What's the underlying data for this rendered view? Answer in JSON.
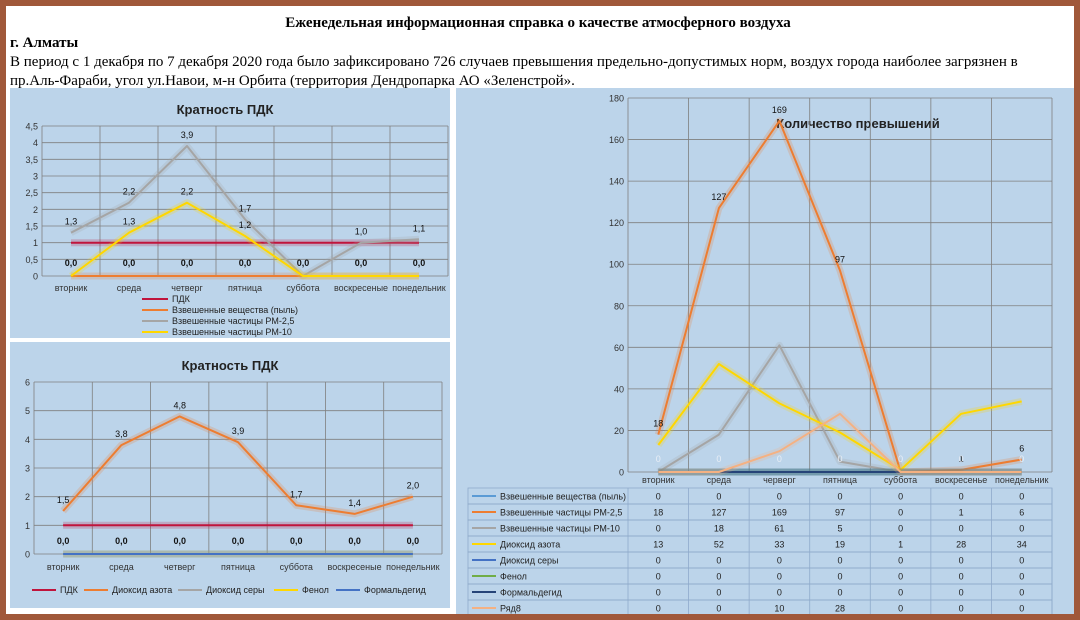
{
  "header": {
    "title": "Еженедельная информационная справка о качестве атмосферного воздуха",
    "city": "г. Алматы",
    "text": "В период с 1 декабря по 7 декабря 2020 года было зафиксировано 726 случаев превышения предельно-допустимых норм, воздух города наиболее загрязнен в пр.Аль-Фараби, угол ул.Навои, м-н Орбита (территория Дендропарка АО «Зеленстрой»."
  },
  "chart_data": [
    {
      "type": "line",
      "title": "Кратность ПДК",
      "categories": [
        "вторник",
        "среда",
        "четверг",
        "пятница",
        "суббота",
        "воскресеные",
        "понедельник"
      ],
      "ylim": [
        0,
        4.5
      ],
      "yticks": [
        "0",
        "0,5",
        "1",
        "1,5",
        "2",
        "2,5",
        "3",
        "3,5",
        "4",
        "4,5"
      ],
      "grid": true,
      "legend_position": "bottom-left",
      "series": [
        {
          "name": "ПДК",
          "color": "#c0143c",
          "values": [
            1,
            1,
            1,
            1,
            1,
            1,
            1
          ]
        },
        {
          "name": "Взвешенные вещества (пыль)",
          "color": "#ed7d31",
          "values": [
            0,
            0,
            0,
            0,
            0,
            0,
            0
          ]
        },
        {
          "name": "Взвешенные частицы РМ-2,5",
          "color": "#a5a5a5",
          "values": [
            1.3,
            2.2,
            3.9,
            1.7,
            0,
            1.0,
            1.1
          ]
        },
        {
          "name": "Взвешенные частицы РМ-10",
          "color": "#ffd700",
          "values": [
            0,
            1.3,
            2.2,
            1.2,
            0,
            0,
            0
          ]
        }
      ],
      "labels": [
        {
          "cat": 0,
          "y": 1.3,
          "text": "1,3"
        },
        {
          "cat": 1,
          "y": 2.2,
          "text": "2,2"
        },
        {
          "cat": 2,
          "y": 3.9,
          "text": "3,9"
        },
        {
          "cat": 3,
          "y": 1.7,
          "text": "1,7"
        },
        {
          "cat": 5,
          "y": 1.0,
          "text": "1,0"
        },
        {
          "cat": 6,
          "y": 1.1,
          "text": "1,1"
        },
        {
          "cat": 1,
          "y": 1.3,
          "text": "1,3"
        },
        {
          "cat": 2,
          "y": 2.2,
          "text": "2,2"
        },
        {
          "cat": 3,
          "y": 1.2,
          "text": "1,2"
        },
        {
          "cat": 0,
          "y": 0,
          "text": "0,0"
        },
        {
          "cat": 1,
          "y": 0,
          "text": "0,0"
        },
        {
          "cat": 2,
          "y": 0,
          "text": "0,0"
        },
        {
          "cat": 3,
          "y": 0,
          "text": "0,0"
        },
        {
          "cat": 4,
          "y": 0,
          "text": "0,0"
        },
        {
          "cat": 5,
          "y": 0,
          "text": "0,0"
        },
        {
          "cat": 6,
          "y": 0,
          "text": "0,0"
        }
      ]
    },
    {
      "type": "line",
      "title": "Кратность ПДК",
      "categories": [
        "вторник",
        "среда",
        "четверг",
        "пятница",
        "суббота",
        "воскресеные",
        "понедельник"
      ],
      "ylim": [
        0,
        6
      ],
      "yticks": [
        "0",
        "1",
        "2",
        "3",
        "4",
        "5",
        "6"
      ],
      "grid": true,
      "legend_position": "bottom",
      "series": [
        {
          "name": "ПДК",
          "color": "#c0143c",
          "values": [
            1,
            1,
            1,
            1,
            1,
            1,
            1
          ]
        },
        {
          "name": "Диоксид азота",
          "color": "#ed7d31",
          "values": [
            1.5,
            3.8,
            4.8,
            3.9,
            1.7,
            1.4,
            2.0
          ]
        },
        {
          "name": "Диоксид серы",
          "color": "#a5a5a5",
          "values": [
            0,
            0,
            0,
            0,
            0,
            0,
            0
          ]
        },
        {
          "name": "Фенол",
          "color": "#ffd700",
          "values": [
            0,
            0,
            0,
            0,
            0,
            0,
            0
          ]
        },
        {
          "name": "Формальдегид",
          "color": "#4472c4",
          "values": [
            0,
            0,
            0,
            0,
            0,
            0,
            0
          ]
        }
      ],
      "labels": [
        {
          "cat": 0,
          "y": 1.5,
          "text": "1,5"
        },
        {
          "cat": 1,
          "y": 3.8,
          "text": "3,8"
        },
        {
          "cat": 2,
          "y": 4.8,
          "text": "4,8"
        },
        {
          "cat": 3,
          "y": 3.9,
          "text": "3,9"
        },
        {
          "cat": 4,
          "y": 1.7,
          "text": "1,7"
        },
        {
          "cat": 5,
          "y": 1.4,
          "text": "1,4"
        },
        {
          "cat": 6,
          "y": 2.0,
          "text": "2,0"
        },
        {
          "cat": 0,
          "y": 0,
          "text": "0,0"
        },
        {
          "cat": 1,
          "y": 0,
          "text": "0,0"
        },
        {
          "cat": 2,
          "y": 0,
          "text": "0,0"
        },
        {
          "cat": 3,
          "y": 0,
          "text": "0,0"
        },
        {
          "cat": 4,
          "y": 0,
          "text": "0,0"
        },
        {
          "cat": 5,
          "y": 0,
          "text": "0,0"
        },
        {
          "cat": 6,
          "y": 0,
          "text": "0,0"
        }
      ]
    },
    {
      "type": "line",
      "title": "Количество превышений",
      "categories": [
        "вторник",
        "среда",
        "черверг",
        "пятница",
        "суббота",
        "воскресенье",
        "понедельник"
      ],
      "ylim": [
        0,
        180
      ],
      "yticks": [
        "0",
        "20",
        "40",
        "60",
        "80",
        "100",
        "120",
        "140",
        "160",
        "180"
      ],
      "grid": true,
      "legend_position": "data-table",
      "series": [
        {
          "name": "Взвешенные вещества (пыль)",
          "color": "#5b9bd5",
          "values": [
            0,
            0,
            0,
            0,
            0,
            0,
            0
          ]
        },
        {
          "name": "Взвешенные частицы РМ-2,5",
          "color": "#ed7d31",
          "values": [
            18,
            127,
            169,
            97,
            0,
            1,
            6
          ]
        },
        {
          "name": "Взвешенные частицы РМ-10",
          "color": "#a5a5a5",
          "values": [
            0,
            18,
            61,
            5,
            0,
            0,
            0
          ]
        },
        {
          "name": "Диоксид азота",
          "color": "#ffd700",
          "values": [
            13,
            52,
            33,
            19,
            1,
            28,
            34
          ]
        },
        {
          "name": "Диоксид серы",
          "color": "#4472c4",
          "values": [
            0,
            0,
            0,
            0,
            0,
            0,
            0
          ]
        },
        {
          "name": "Фенол",
          "color": "#70ad47",
          "values": [
            0,
            0,
            0,
            0,
            0,
            0,
            0
          ]
        },
        {
          "name": "Формальдегид",
          "color": "#264478",
          "values": [
            0,
            0,
            0,
            0,
            0,
            0,
            0
          ]
        },
        {
          "name": "Ряд8",
          "color": "#f4b183",
          "values": [
            0,
            0,
            10,
            28,
            0,
            0,
            0
          ]
        }
      ],
      "labels": [
        {
          "cat": 0,
          "y": 18,
          "text": "18"
        },
        {
          "cat": 1,
          "y": 127,
          "text": "127"
        },
        {
          "cat": 2,
          "y": 169,
          "text": "169"
        },
        {
          "cat": 3,
          "y": 97,
          "text": "97"
        },
        {
          "cat": 5,
          "y": 1,
          "text": "1"
        },
        {
          "cat": 6,
          "y": 6,
          "text": "6"
        },
        {
          "cat": 0,
          "y": 0,
          "text": "0"
        },
        {
          "cat": 1,
          "y": 0,
          "text": "0"
        },
        {
          "cat": 2,
          "y": 0,
          "text": "0"
        },
        {
          "cat": 3,
          "y": 0,
          "text": "0"
        },
        {
          "cat": 4,
          "y": 0,
          "text": "0"
        },
        {
          "cat": 5,
          "y": 0,
          "text": "0"
        },
        {
          "cat": 6,
          "y": 0,
          "text": "0"
        }
      ]
    }
  ]
}
